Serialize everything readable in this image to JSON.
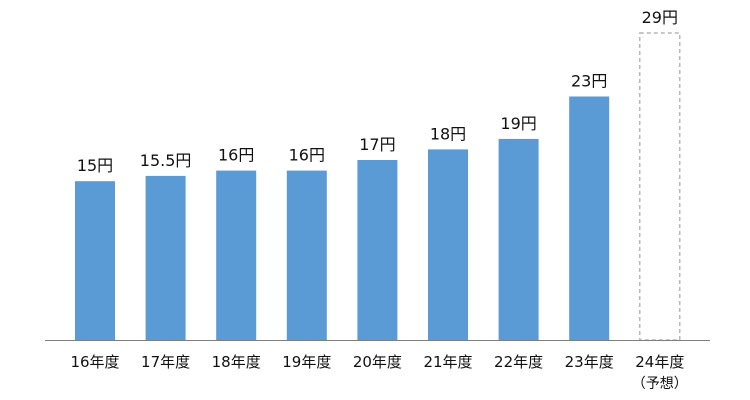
{
  "chart_data": {
    "type": "bar",
    "categories": [
      "16年度",
      "17年度",
      "18年度",
      "19年度",
      "20年度",
      "21年度",
      "22年度",
      "23年度",
      "24年度"
    ],
    "category_notes": [
      "",
      "",
      "",
      "",
      "",
      "",
      "",
      "",
      "（予想）"
    ],
    "values": [
      15,
      15.5,
      16,
      16,
      17,
      18,
      19,
      23,
      29
    ],
    "value_labels": [
      "15円",
      "15.5円",
      "16円",
      "16円",
      "17円",
      "18円",
      "19円",
      "23円",
      "29円"
    ],
    "projected": [
      false,
      false,
      false,
      false,
      false,
      false,
      false,
      false,
      true
    ],
    "title": "",
    "xlabel": "",
    "ylabel": "",
    "ylim": [
      0,
      29
    ],
    "grid": false,
    "bar_color": "#5b9bd5",
    "projected_border_color": "#a6a6a6",
    "axis_color": "#7f7f7f"
  }
}
